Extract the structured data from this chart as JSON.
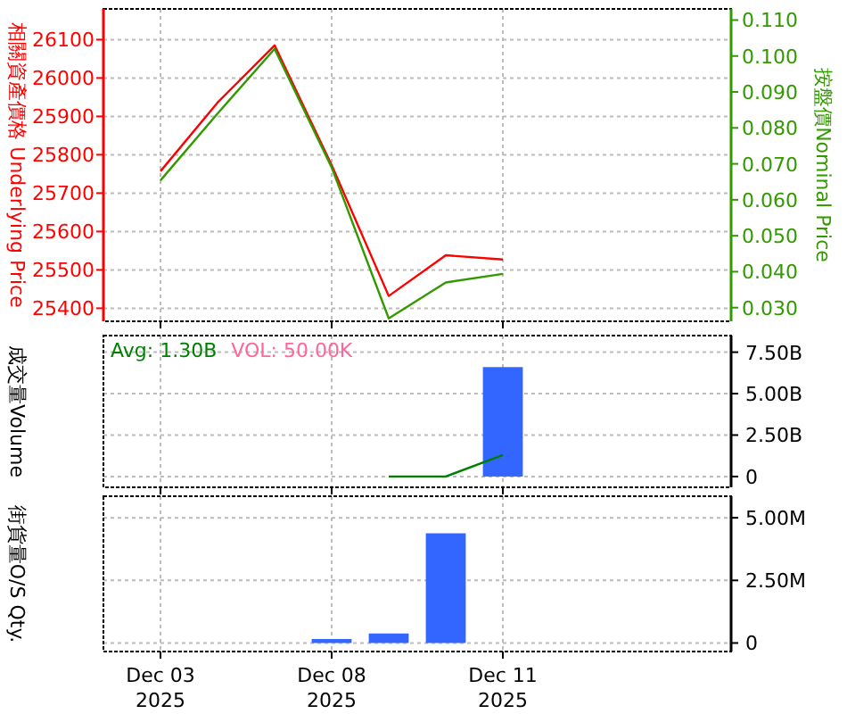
{
  "chart_data": [
    {
      "type": "line",
      "categories": [
        null,
        null,
        null,
        null,
        null,
        null,
        null,
        null,
        null,
        null,
        null,
        null
      ],
      "series": [
        {
          "color": "#ff0000",
          "values": [
            null,
            25757,
            25936,
            26085,
            25773,
            25432,
            25538,
            25527,
            null,
            null,
            null,
            null
          ]
        },
        {
          "color": "#339900",
          "axis": "y2",
          "values": [
            null,
            0.0654,
            0.084,
            0.102,
            0.069,
            0.027,
            0.037,
            0.0394,
            null,
            null,
            null,
            null
          ]
        }
      ],
      "ylabel": "相關資產價格 Underlying Price",
      "y2label": "按盤價Nominal Price",
      "ylim": [
        25366,
        26180
      ],
      "yticks": [
        25400,
        25500,
        25600,
        25700,
        25800,
        25900,
        26000,
        26100
      ],
      "y2lim": [
        0.0262,
        0.1131
      ],
      "y2ticks": [
        {
          "value": 0.03,
          "label": "0.030"
        },
        {
          "value": 0.04,
          "label": "0.040"
        },
        {
          "value": 0.05,
          "label": "0.050"
        },
        {
          "value": 0.06,
          "label": "0.060"
        },
        {
          "value": 0.07,
          "label": "0.070"
        },
        {
          "value": 0.08,
          "label": "0.080"
        },
        {
          "value": 0.09,
          "label": "0.090"
        },
        {
          "value": 0.1,
          "label": "0.100"
        },
        {
          "value": 0.11,
          "label": "0.110"
        }
      ],
      "grid": true,
      "tick_labels": "y"
    },
    {
      "type": "bar",
      "categories": [
        null,
        null,
        null,
        null,
        null,
        null,
        null,
        null,
        null,
        null,
        null,
        null
      ],
      "series": [
        {
          "color": "#3366ff",
          "values": [
            null,
            null,
            null,
            null,
            null,
            null,
            null,
            6.6,
            null,
            null,
            null,
            null
          ]
        },
        {
          "type": "line",
          "color": "#008000",
          "values": [
            null,
            null,
            null,
            null,
            null,
            0,
            0,
            1.3,
            null,
            null,
            null,
            null
          ]
        }
      ],
      "ylabel": "成交量Volume",
      "ylim": [
        -0.65,
        8.5
      ],
      "yticks": [
        0,
        {
          "value": 2.5,
          "label": "2.50B"
        },
        {
          "value": 5,
          "label": "5.00B"
        },
        {
          "value": 7.5,
          "label": "7.50B"
        }
      ],
      "annotations": [
        "Avg: 1.30B",
        "VOL: 50.00K"
      ],
      "grid": true,
      "tick_labels": "y"
    },
    {
      "type": "bar",
      "categories": [
        null,
        "Dec 03\n2025",
        null,
        null,
        "Dec 08\n2025",
        null,
        null,
        "Dec 11\n2025",
        null,
        null,
        null,
        null
      ],
      "series": [
        {
          "color": "#3366ff",
          "values": [
            null,
            null,
            null,
            null,
            0.16,
            0.38,
            4.38,
            null,
            null,
            null,
            null,
            null
          ]
        }
      ],
      "ylabel": "街貨量O/S Qty.",
      "ylim": [
        -0.34,
        5.86
      ],
      "yticks": [
        0,
        {
          "value": 2.5,
          "label": "2.50M"
        },
        {
          "value": 5,
          "label": "5.00M"
        }
      ],
      "grid": true
    }
  ]
}
